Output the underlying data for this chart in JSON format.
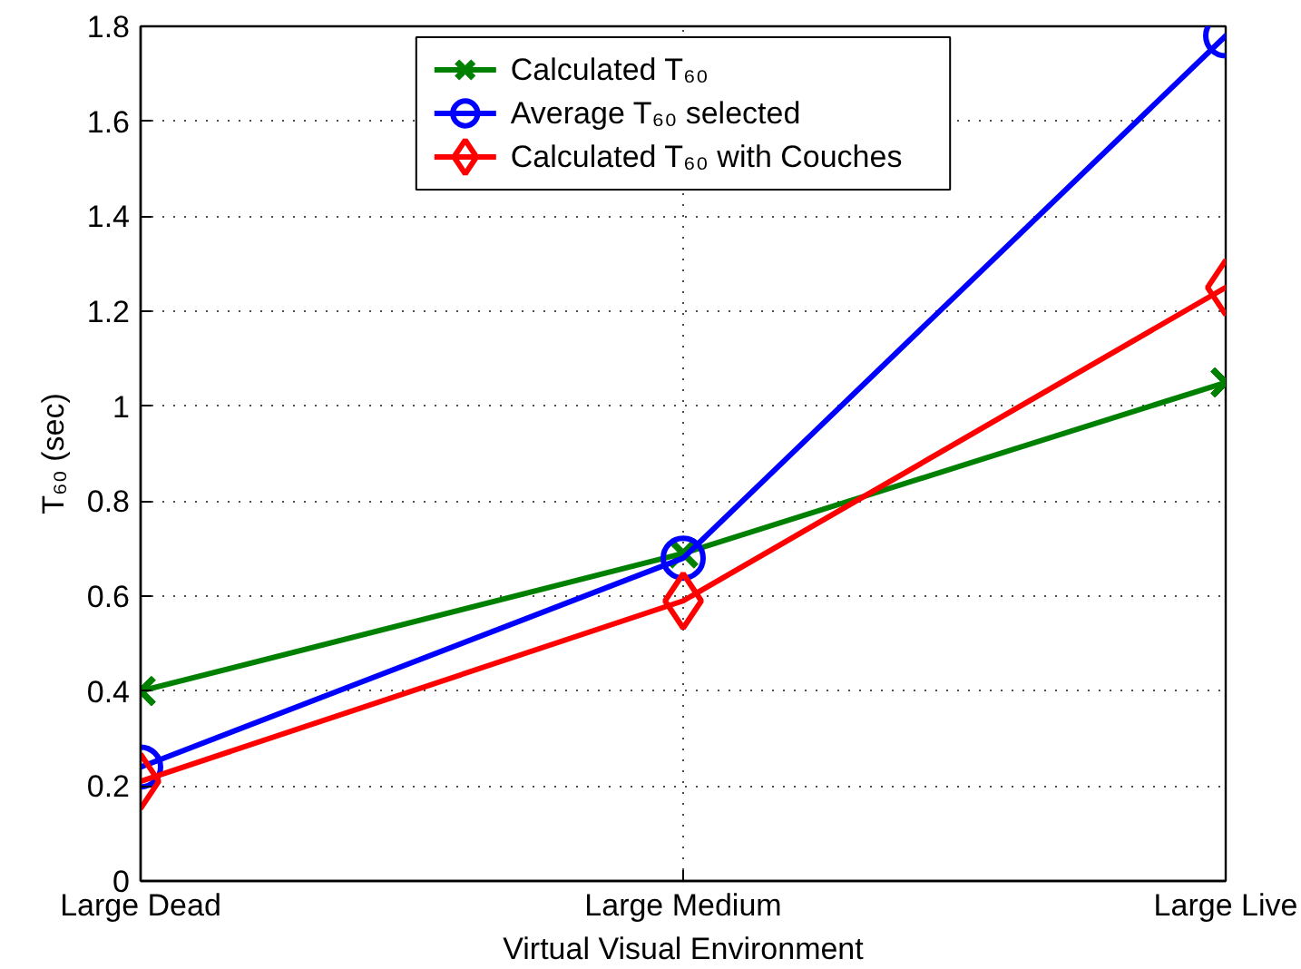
{
  "chart_data": {
    "type": "line",
    "xlabel": "Virtual Visual Environment",
    "ylabel": "T₆₀ (sec)",
    "categories": [
      "Large Dead",
      "Large Medium",
      "Large Live"
    ],
    "series": [
      {
        "name": "Calculated T₆₀",
        "color": "#008000",
        "marker": "cross",
        "values": [
          0.4,
          0.69,
          1.05
        ]
      },
      {
        "name": "Average T₆₀ selected",
        "color": "#0000ff",
        "marker": "circle",
        "values": [
          0.24,
          0.68,
          1.78
        ]
      },
      {
        "name": "Calculated T₆₀ with Couches",
        "color": "#ff0000",
        "marker": "diamond",
        "values": [
          0.21,
          0.59,
          1.25
        ]
      }
    ],
    "ylim": [
      0,
      1.8
    ],
    "yticks": [
      0,
      0.2,
      0.4,
      0.6,
      0.8,
      1,
      1.2,
      1.4,
      1.6,
      1.8
    ],
    "grid": true,
    "legend": "top",
    "line_style": "solid"
  }
}
